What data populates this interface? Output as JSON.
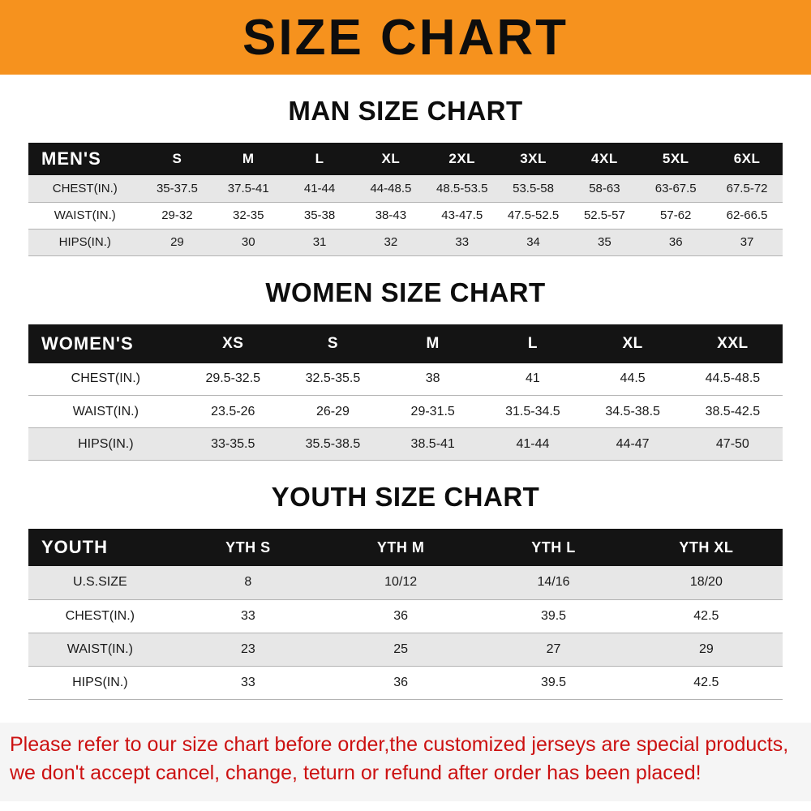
{
  "banner": {
    "title": "SIZE CHART"
  },
  "colors": {
    "banner_bg": "#F6921E",
    "table_header_bg": "#141414",
    "row_stripe": "#E7E7E7",
    "disclaimer_text": "#CC1111"
  },
  "sections": [
    {
      "heading": "MAN SIZE CHART",
      "table": {
        "header": [
          "MEN'S",
          "S",
          "M",
          "L",
          "XL",
          "2XL",
          "3XL",
          "4XL",
          "5XL",
          "6XL"
        ],
        "rows": [
          [
            "CHEST(IN.)",
            "35-37.5",
            "37.5-41",
            "41-44",
            "44-48.5",
            "48.5-53.5",
            "53.5-58",
            "58-63",
            "63-67.5",
            "67.5-72"
          ],
          [
            "WAIST(IN.)",
            "29-32",
            "32-35",
            "35-38",
            "38-43",
            "43-47.5",
            "47.5-52.5",
            "52.5-57",
            "57-62",
            "62-66.5"
          ],
          [
            "HIPS(IN.)",
            "29",
            "30",
            "31",
            "32",
            "33",
            "34",
            "35",
            "36",
            "37"
          ]
        ]
      }
    },
    {
      "heading": "WOMEN SIZE CHART",
      "table": {
        "header": [
          "WOMEN'S",
          "XS",
          "S",
          "M",
          "L",
          "XL",
          "XXL"
        ],
        "rows": [
          [
            "CHEST(IN.)",
            "29.5-32.5",
            "32.5-35.5",
            "38",
            "41",
            "44.5",
            "44.5-48.5"
          ],
          [
            "WAIST(IN.)",
            "23.5-26",
            "26-29",
            "29-31.5",
            "31.5-34.5",
            "34.5-38.5",
            "38.5-42.5"
          ],
          [
            "HIPS(IN.)",
            "33-35.5",
            "35.5-38.5",
            "38.5-41",
            "41-44",
            "44-47",
            "47-50"
          ]
        ]
      }
    },
    {
      "heading": "YOUTH SIZE CHART",
      "table": {
        "header": [
          "YOUTH",
          "YTH S",
          "YTH M",
          "YTH L",
          "YTH XL"
        ],
        "rows": [
          [
            "U.S.SIZE",
            "8",
            "10/12",
            "14/16",
            "18/20"
          ],
          [
            "CHEST(IN.)",
            "33",
            "36",
            "39.5",
            "42.5"
          ],
          [
            "WAIST(IN.)",
            "23",
            "25",
            "27",
            "29"
          ],
          [
            "HIPS(IN.)",
            "33",
            "36",
            "39.5",
            "42.5"
          ]
        ]
      }
    }
  ],
  "disclaimer": {
    "line1": "Please refer to our size chart before order,the customized jerseys are special products,",
    "line2": "we don't accept cancel, change, teturn or refund after order has been placed!"
  }
}
